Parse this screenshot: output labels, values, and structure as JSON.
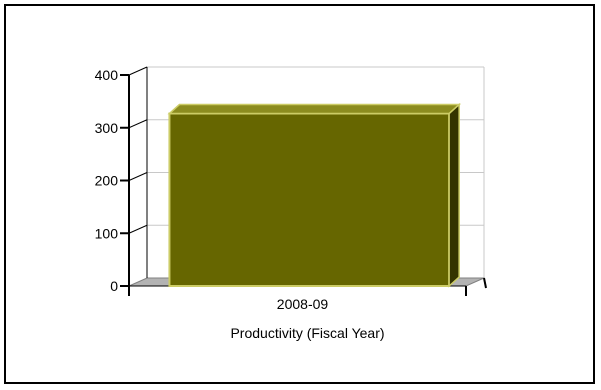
{
  "chart_data": {
    "type": "bar",
    "style": "3d",
    "categories": [
      "2008-09"
    ],
    "values": [
      327
    ],
    "title": "",
    "xlabel": "Productivity (Fiscal Year)",
    "ylabel": "",
    "ylim": [
      0,
      400
    ],
    "yticks": [
      "0",
      "100",
      "200",
      "300",
      "400"
    ],
    "grid": true,
    "legend": "none",
    "colors": {
      "bar_front": "#666600",
      "bar_top": "#8c8c1f",
      "bar_side": "#333300",
      "bar_edge": "#cccc66",
      "floor": "#b3b3b3",
      "grid": "#c8c8c8"
    }
  }
}
